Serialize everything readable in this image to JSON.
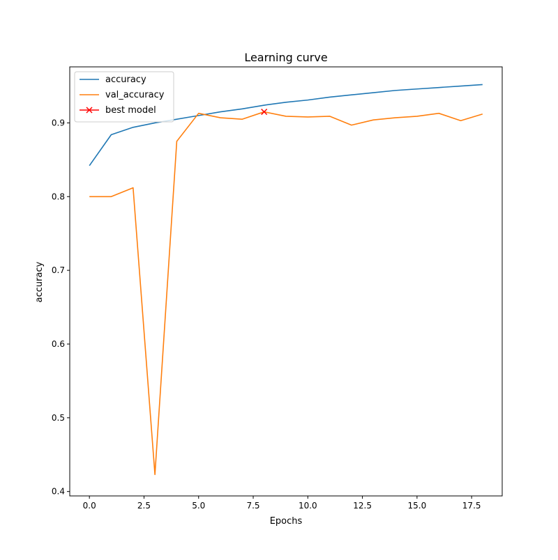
{
  "chart_data": {
    "type": "line",
    "title": "Learning curve",
    "xlabel": "Epochs",
    "ylabel": "accuracy",
    "xlim": [
      -0.9,
      18.9
    ],
    "ylim": [
      0.394,
      0.976
    ],
    "x_ticks": [
      0.0,
      2.5,
      5.0,
      7.5,
      10.0,
      12.5,
      15.0,
      17.5
    ],
    "x_tick_labels": [
      "0.0",
      "2.5",
      "5.0",
      "7.5",
      "10.0",
      "12.5",
      "15.0",
      "17.5"
    ],
    "y_ticks": [
      0.4,
      0.5,
      0.6,
      0.7,
      0.8,
      0.9
    ],
    "y_tick_labels": [
      "0.4",
      "0.5",
      "0.6",
      "0.7",
      "0.8",
      "0.9"
    ],
    "grid": false,
    "legend_position": "top-left",
    "x": [
      0,
      1,
      2,
      3,
      4,
      5,
      6,
      7,
      8,
      9,
      10,
      11,
      12,
      13,
      14,
      15,
      16,
      17,
      18
    ],
    "series": [
      {
        "name": "accuracy",
        "color": "#1f77b4",
        "values": [
          0.842,
          0.884,
          0.894,
          0.9,
          0.905,
          0.91,
          0.915,
          0.919,
          0.924,
          0.928,
          0.931,
          0.935,
          0.938,
          0.941,
          0.944,
          0.946,
          0.948,
          0.95,
          0.952
        ]
      },
      {
        "name": "val_accuracy",
        "color": "#ff7f0e",
        "values": [
          0.8,
          0.8,
          0.812,
          0.423,
          0.875,
          0.913,
          0.907,
          0.905,
          0.915,
          0.909,
          0.908,
          0.909,
          0.897,
          0.904,
          0.907,
          0.909,
          0.913,
          0.903,
          0.912
        ]
      }
    ],
    "markers": [
      {
        "name": "best model",
        "color": "#ff0000",
        "marker": "x",
        "x": 8,
        "y": 0.915
      }
    ]
  }
}
